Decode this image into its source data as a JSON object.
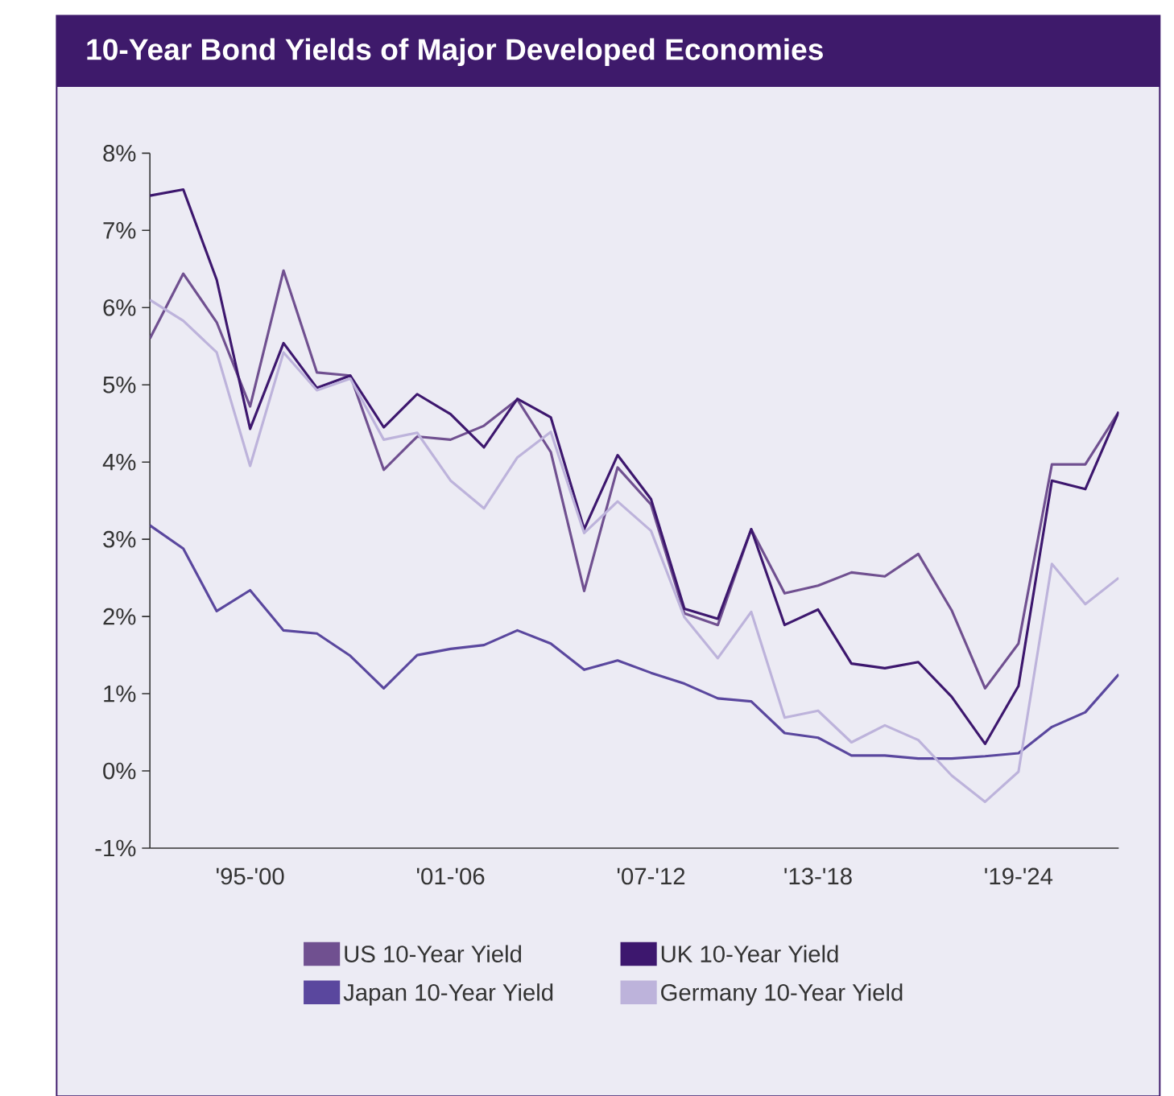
{
  "chart_data": {
    "type": "line",
    "title": "10-Year Bond Yields of Major Developed Economies",
    "categories": [
      null,
      null,
      null,
      "'95-'00",
      null,
      null,
      null,
      null,
      null,
      "'01-'06",
      null,
      null,
      null,
      null,
      null,
      "'07-'12",
      null,
      null,
      null,
      null,
      "'13-'18",
      null,
      null,
      null,
      null,
      null,
      "'19-'24",
      null,
      null,
      null
    ],
    "ylim": [
      -1,
      8
    ],
    "yticks": [
      {
        "value": -1,
        "label": "-1%"
      },
      {
        "value": 0,
        "label": "0%"
      },
      {
        "value": 1,
        "label": "1%"
      },
      {
        "value": 2,
        "label": "2%"
      },
      {
        "value": 3,
        "label": "3%"
      },
      {
        "value": 4,
        "label": "4%"
      },
      {
        "value": 5,
        "label": "5%"
      },
      {
        "value": 6,
        "label": "6%"
      },
      {
        "value": 7,
        "label": "7%"
      },
      {
        "value": 8,
        "label": "8%"
      }
    ],
    "series": [
      {
        "name": "US 10-Year Yield",
        "color": "#705090",
        "values": [
          5.6,
          6.44,
          5.81,
          4.72,
          6.48,
          5.16,
          5.12,
          3.9,
          4.33,
          4.29,
          4.47,
          4.81,
          4.13,
          2.33,
          3.93,
          3.45,
          2.04,
          1.89,
          3.13,
          2.3,
          2.4,
          2.57,
          2.52,
          2.81,
          2.08,
          1.07,
          1.65,
          3.97,
          3.97,
          4.65
        ]
      },
      {
        "name": "UK 10-Year Yield",
        "color": "#3D176E",
        "values": [
          7.45,
          7.53,
          6.36,
          4.43,
          5.54,
          4.96,
          5.12,
          4.45,
          4.88,
          4.62,
          4.19,
          4.82,
          4.58,
          3.13,
          4.09,
          3.52,
          2.1,
          1.97,
          3.13,
          1.89,
          2.09,
          1.39,
          1.33,
          1.41,
          0.96,
          0.35,
          1.1,
          3.76,
          3.65,
          4.65
        ]
      },
      {
        "name": "Japan 10-Year Yield",
        "color": "#5A479E",
        "values": [
          3.18,
          2.88,
          2.07,
          2.34,
          1.82,
          1.78,
          1.49,
          1.07,
          1.5,
          1.58,
          1.63,
          1.82,
          1.65,
          1.31,
          1.43,
          1.27,
          1.13,
          0.94,
          0.9,
          0.49,
          0.43,
          0.2,
          0.2,
          0.16,
          0.16,
          0.19,
          0.23,
          0.57,
          0.76,
          1.25
        ]
      },
      {
        "name": "Germany 10-Year Yield",
        "color": "#BDB3DB",
        "values": [
          6.1,
          5.83,
          5.42,
          3.95,
          5.42,
          4.93,
          5.08,
          4.29,
          4.38,
          3.76,
          3.4,
          4.06,
          4.39,
          3.08,
          3.49,
          3.11,
          1.99,
          1.46,
          2.06,
          0.69,
          0.78,
          0.37,
          0.59,
          0.4,
          -0.06,
          -0.4,
          -0.01,
          2.68,
          2.16,
          2.5
        ]
      }
    ],
    "legend": "bottom",
    "line_style": "solid"
  }
}
